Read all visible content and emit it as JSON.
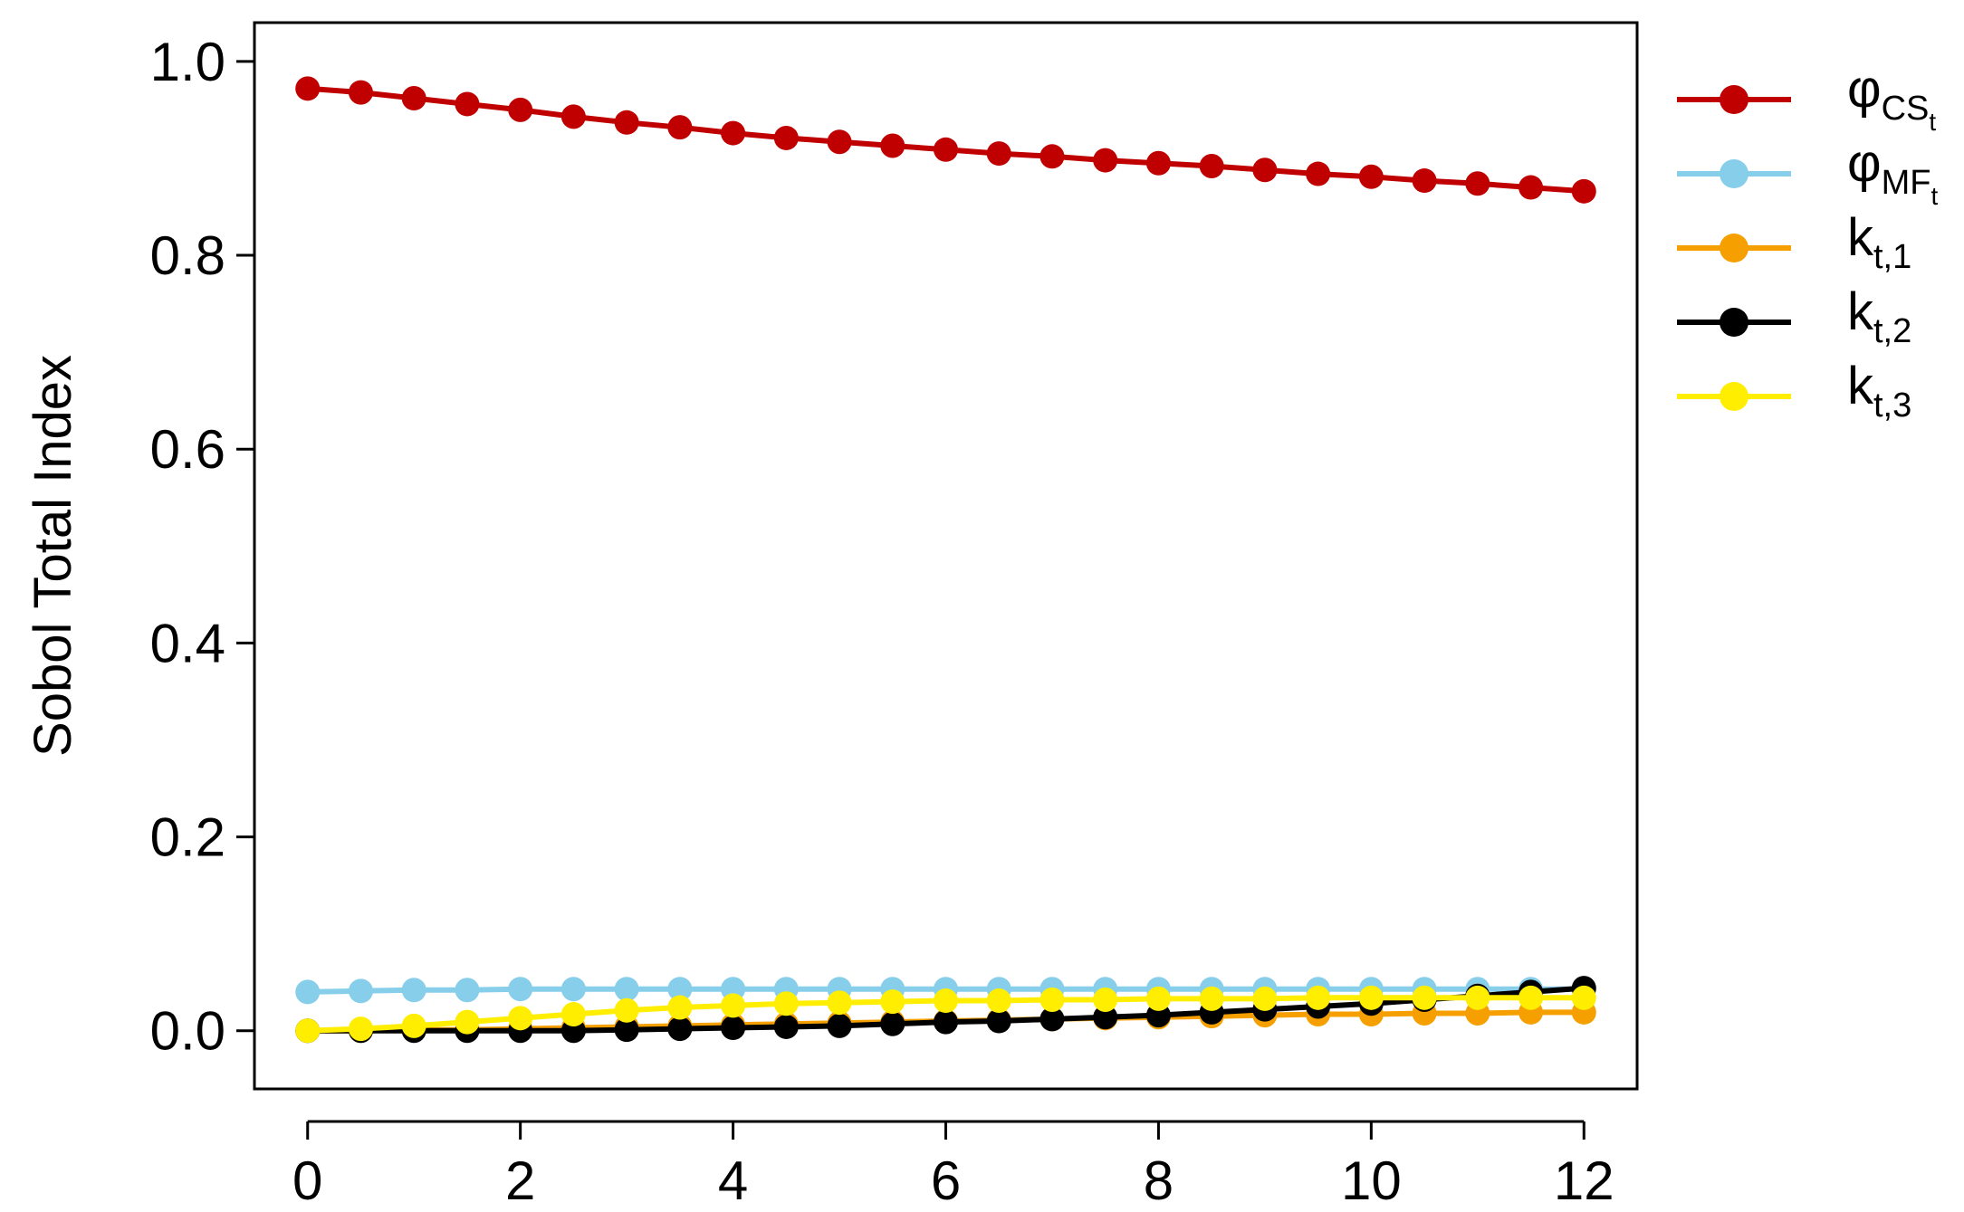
{
  "chart_data": {
    "type": "line",
    "title": "",
    "xlabel": "",
    "ylabel": "Sobol Total Index",
    "xlim": [
      -0.5,
      12.5
    ],
    "ylim": [
      -0.06,
      1.04
    ],
    "xticks": [
      0,
      2,
      4,
      6,
      8,
      10,
      12
    ],
    "xtick_labels": [
      "0",
      "2",
      "4",
      "6",
      "8",
      "10",
      "12"
    ],
    "yticks": [
      0.0,
      0.2,
      0.4,
      0.6,
      0.8,
      1.0
    ],
    "ytick_labels": [
      "0.0",
      "0.2",
      "0.4",
      "0.6",
      "0.8",
      "1.0"
    ],
    "grid": false,
    "legend_position": "outside-right",
    "x": [
      0,
      0.5,
      1,
      1.5,
      2,
      2.5,
      3,
      3.5,
      4,
      4.5,
      5,
      5.5,
      6,
      6.5,
      7,
      7.5,
      8,
      8.5,
      9,
      9.5,
      10,
      10.5,
      11,
      11.5,
      12
    ],
    "series": [
      {
        "name": "φCSt",
        "legend": {
          "base": "φ",
          "sub": "CS",
          "subsub": "t"
        },
        "color": "#c00000",
        "values": [
          0.972,
          0.968,
          0.962,
          0.956,
          0.95,
          0.943,
          0.937,
          0.932,
          0.926,
          0.921,
          0.917,
          0.913,
          0.909,
          0.905,
          0.902,
          0.898,
          0.895,
          0.892,
          0.888,
          0.884,
          0.881,
          0.877,
          0.874,
          0.87,
          0.866
        ]
      },
      {
        "name": "φMFt",
        "legend": {
          "base": "φ",
          "sub": "MF",
          "subsub": "t"
        },
        "color": "#87ceeb",
        "values": [
          0.04,
          0.041,
          0.042,
          0.042,
          0.043,
          0.043,
          0.043,
          0.043,
          0.043,
          0.043,
          0.043,
          0.043,
          0.043,
          0.043,
          0.043,
          0.043,
          0.043,
          0.043,
          0.043,
          0.043,
          0.043,
          0.043,
          0.043,
          0.043,
          0.043
        ]
      },
      {
        "name": "kt,1",
        "legend": {
          "base": "k",
          "sub": "t,1",
          "subsub": ""
        },
        "color": "#f5a000",
        "values": [
          0.0,
          0.0,
          0.001,
          0.001,
          0.002,
          0.003,
          0.004,
          0.005,
          0.006,
          0.007,
          0.008,
          0.009,
          0.01,
          0.011,
          0.012,
          0.013,
          0.014,
          0.015,
          0.016,
          0.017,
          0.017,
          0.018,
          0.018,
          0.019,
          0.019
        ]
      },
      {
        "name": "kt,2",
        "legend": {
          "base": "k",
          "sub": "t,2",
          "subsub": ""
        },
        "color": "#000000",
        "values": [
          0.0,
          0.0,
          0.0,
          0.0,
          0.0,
          0.0,
          0.001,
          0.002,
          0.003,
          0.004,
          0.005,
          0.007,
          0.009,
          0.01,
          0.012,
          0.014,
          0.016,
          0.019,
          0.022,
          0.025,
          0.028,
          0.032,
          0.036,
          0.04,
          0.044
        ]
      },
      {
        "name": "kt,3",
        "legend": {
          "base": "k",
          "sub": "t,3",
          "subsub": ""
        },
        "color": "#ffee00",
        "values": [
          0.0,
          0.002,
          0.005,
          0.009,
          0.013,
          0.017,
          0.021,
          0.024,
          0.026,
          0.028,
          0.029,
          0.03,
          0.031,
          0.031,
          0.032,
          0.032,
          0.033,
          0.033,
          0.033,
          0.034,
          0.034,
          0.034,
          0.034,
          0.034,
          0.034
        ]
      }
    ]
  }
}
